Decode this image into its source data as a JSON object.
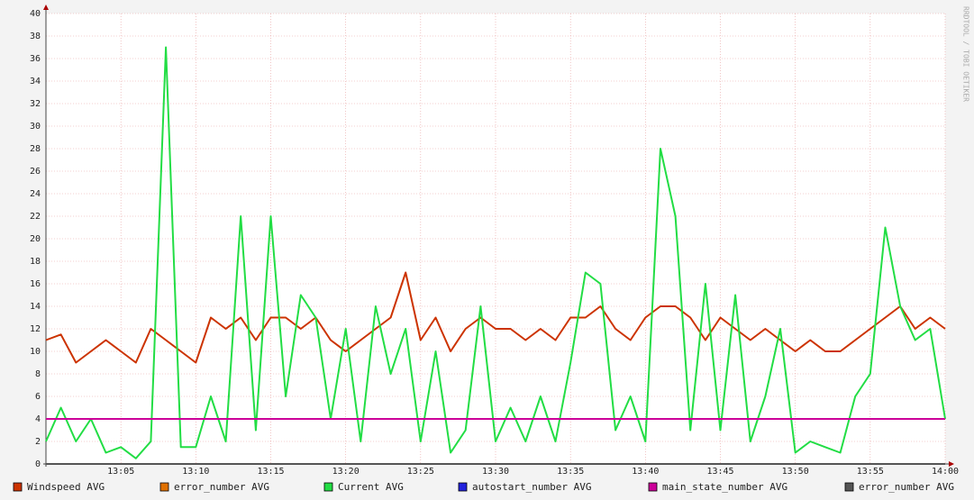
{
  "chart_data": {
    "type": "line",
    "watermark": "RRDTOOL / TOBI OETIKER",
    "x": [
      "13:00",
      "13:01",
      "13:02",
      "13:03",
      "13:04",
      "13:05",
      "13:06",
      "13:07",
      "13:08",
      "13:09",
      "13:10",
      "13:11",
      "13:12",
      "13:13",
      "13:14",
      "13:15",
      "13:16",
      "13:17",
      "13:18",
      "13:19",
      "13:20",
      "13:21",
      "13:22",
      "13:23",
      "13:24",
      "13:25",
      "13:26",
      "13:27",
      "13:28",
      "13:29",
      "13:30",
      "13:31",
      "13:32",
      "13:33",
      "13:34",
      "13:35",
      "13:36",
      "13:37",
      "13:38",
      "13:39",
      "13:40",
      "13:41",
      "13:42",
      "13:43",
      "13:44",
      "13:45",
      "13:46",
      "13:47",
      "13:48",
      "13:49",
      "13:50",
      "13:51",
      "13:52",
      "13:53",
      "13:54",
      "13:55",
      "13:56",
      "13:57",
      "13:58",
      "13:59",
      "14:00"
    ],
    "xlim": [
      "13:00",
      "14:00"
    ],
    "xticks": [
      "13:05",
      "13:10",
      "13:15",
      "13:20",
      "13:25",
      "13:30",
      "13:35",
      "13:40",
      "13:45",
      "13:50",
      "13:55",
      "14:00"
    ],
    "ylim": [
      0,
      40
    ],
    "yticks": [
      0,
      2,
      4,
      6,
      8,
      10,
      12,
      14,
      16,
      18,
      20,
      22,
      24,
      26,
      28,
      30,
      32,
      34,
      36,
      38,
      40
    ],
    "grid": true,
    "legend": "bottom",
    "series": [
      {
        "name": "Windspeed AVG",
        "color": "#cc3300",
        "values": [
          11,
          11.5,
          9,
          10,
          11,
          10,
          9,
          12,
          11,
          10,
          9,
          13,
          12,
          13,
          11,
          13,
          13,
          12,
          13,
          11,
          10,
          11,
          12,
          13,
          17,
          11,
          13,
          10,
          12,
          13,
          12,
          12,
          11,
          12,
          11,
          13,
          13,
          14,
          12,
          11,
          13,
          14,
          14,
          13,
          11,
          13,
          12,
          11,
          12,
          11,
          10,
          11,
          10,
          10,
          11,
          12,
          13,
          14,
          12,
          13,
          12
        ]
      },
      {
        "name": "error_number AVG",
        "color": "#e07000",
        "values": [
          0,
          0,
          0,
          0,
          0,
          0,
          0,
          0,
          0,
          0,
          0,
          0,
          0,
          0,
          0,
          0,
          0,
          0,
          0,
          0,
          0,
          0,
          0,
          0,
          0,
          0,
          0,
          0,
          0,
          0,
          0,
          0,
          0,
          0,
          0,
          0,
          0,
          0,
          0,
          0,
          0,
          0,
          0,
          0,
          0,
          0,
          0,
          0,
          0,
          0,
          0,
          0,
          0,
          0,
          0,
          0,
          0,
          0,
          0,
          0,
          0
        ]
      },
      {
        "name": "Current AVG",
        "color": "#22dd44",
        "values": [
          2,
          5,
          2,
          4,
          1,
          1.5,
          0.5,
          2,
          37,
          1.5,
          1.5,
          6,
          2,
          22,
          3,
          22,
          6,
          15,
          13,
          4,
          12,
          2,
          14,
          8,
          12,
          2,
          10,
          1,
          3,
          14,
          2,
          5,
          2,
          6,
          2,
          9,
          17,
          16,
          3,
          6,
          2,
          28,
          22,
          3,
          16,
          3,
          15,
          2,
          6,
          12,
          1,
          2,
          1.5,
          1,
          6,
          8,
          21,
          14,
          11,
          12,
          4
        ]
      },
      {
        "name": "autostart_number AVG",
        "color": "#2222dd",
        "values": [
          0,
          0,
          0,
          0,
          0,
          0,
          0,
          0,
          0,
          0,
          0,
          0,
          0,
          0,
          0,
          0,
          0,
          0,
          0,
          0,
          0,
          0,
          0,
          0,
          0,
          0,
          0,
          0,
          0,
          0,
          0,
          0,
          0,
          0,
          0,
          0,
          0,
          0,
          0,
          0,
          0,
          0,
          0,
          0,
          0,
          0,
          0,
          0,
          0,
          0,
          0,
          0,
          0,
          0,
          0,
          0,
          0,
          0,
          0,
          0,
          0
        ]
      },
      {
        "name": "main_state_number AVG",
        "color": "#cc0099",
        "values": [
          4,
          4,
          4,
          4,
          4,
          4,
          4,
          4,
          4,
          4,
          4,
          4,
          4,
          4,
          4,
          4,
          4,
          4,
          4,
          4,
          4,
          4,
          4,
          4,
          4,
          4,
          4,
          4,
          4,
          4,
          4,
          4,
          4,
          4,
          4,
          4,
          4,
          4,
          4,
          4,
          4,
          4,
          4,
          4,
          4,
          4,
          4,
          4,
          4,
          4,
          4,
          4,
          4,
          4,
          4,
          4,
          4,
          4,
          4,
          4,
          4
        ]
      },
      {
        "name": "error_number AVG",
        "color": "#555555",
        "values": [
          0,
          0,
          0,
          0,
          0,
          0,
          0,
          0,
          0,
          0,
          0,
          0,
          0,
          0,
          0,
          0,
          0,
          0,
          0,
          0,
          0,
          0,
          0,
          0,
          0,
          0,
          0,
          0,
          0,
          0,
          0,
          0,
          0,
          0,
          0,
          0,
          0,
          0,
          0,
          0,
          0,
          0,
          0,
          0,
          0,
          0,
          0,
          0,
          0,
          0,
          0,
          0,
          0,
          0,
          0,
          0,
          0,
          0,
          0,
          0,
          0
        ]
      }
    ]
  }
}
